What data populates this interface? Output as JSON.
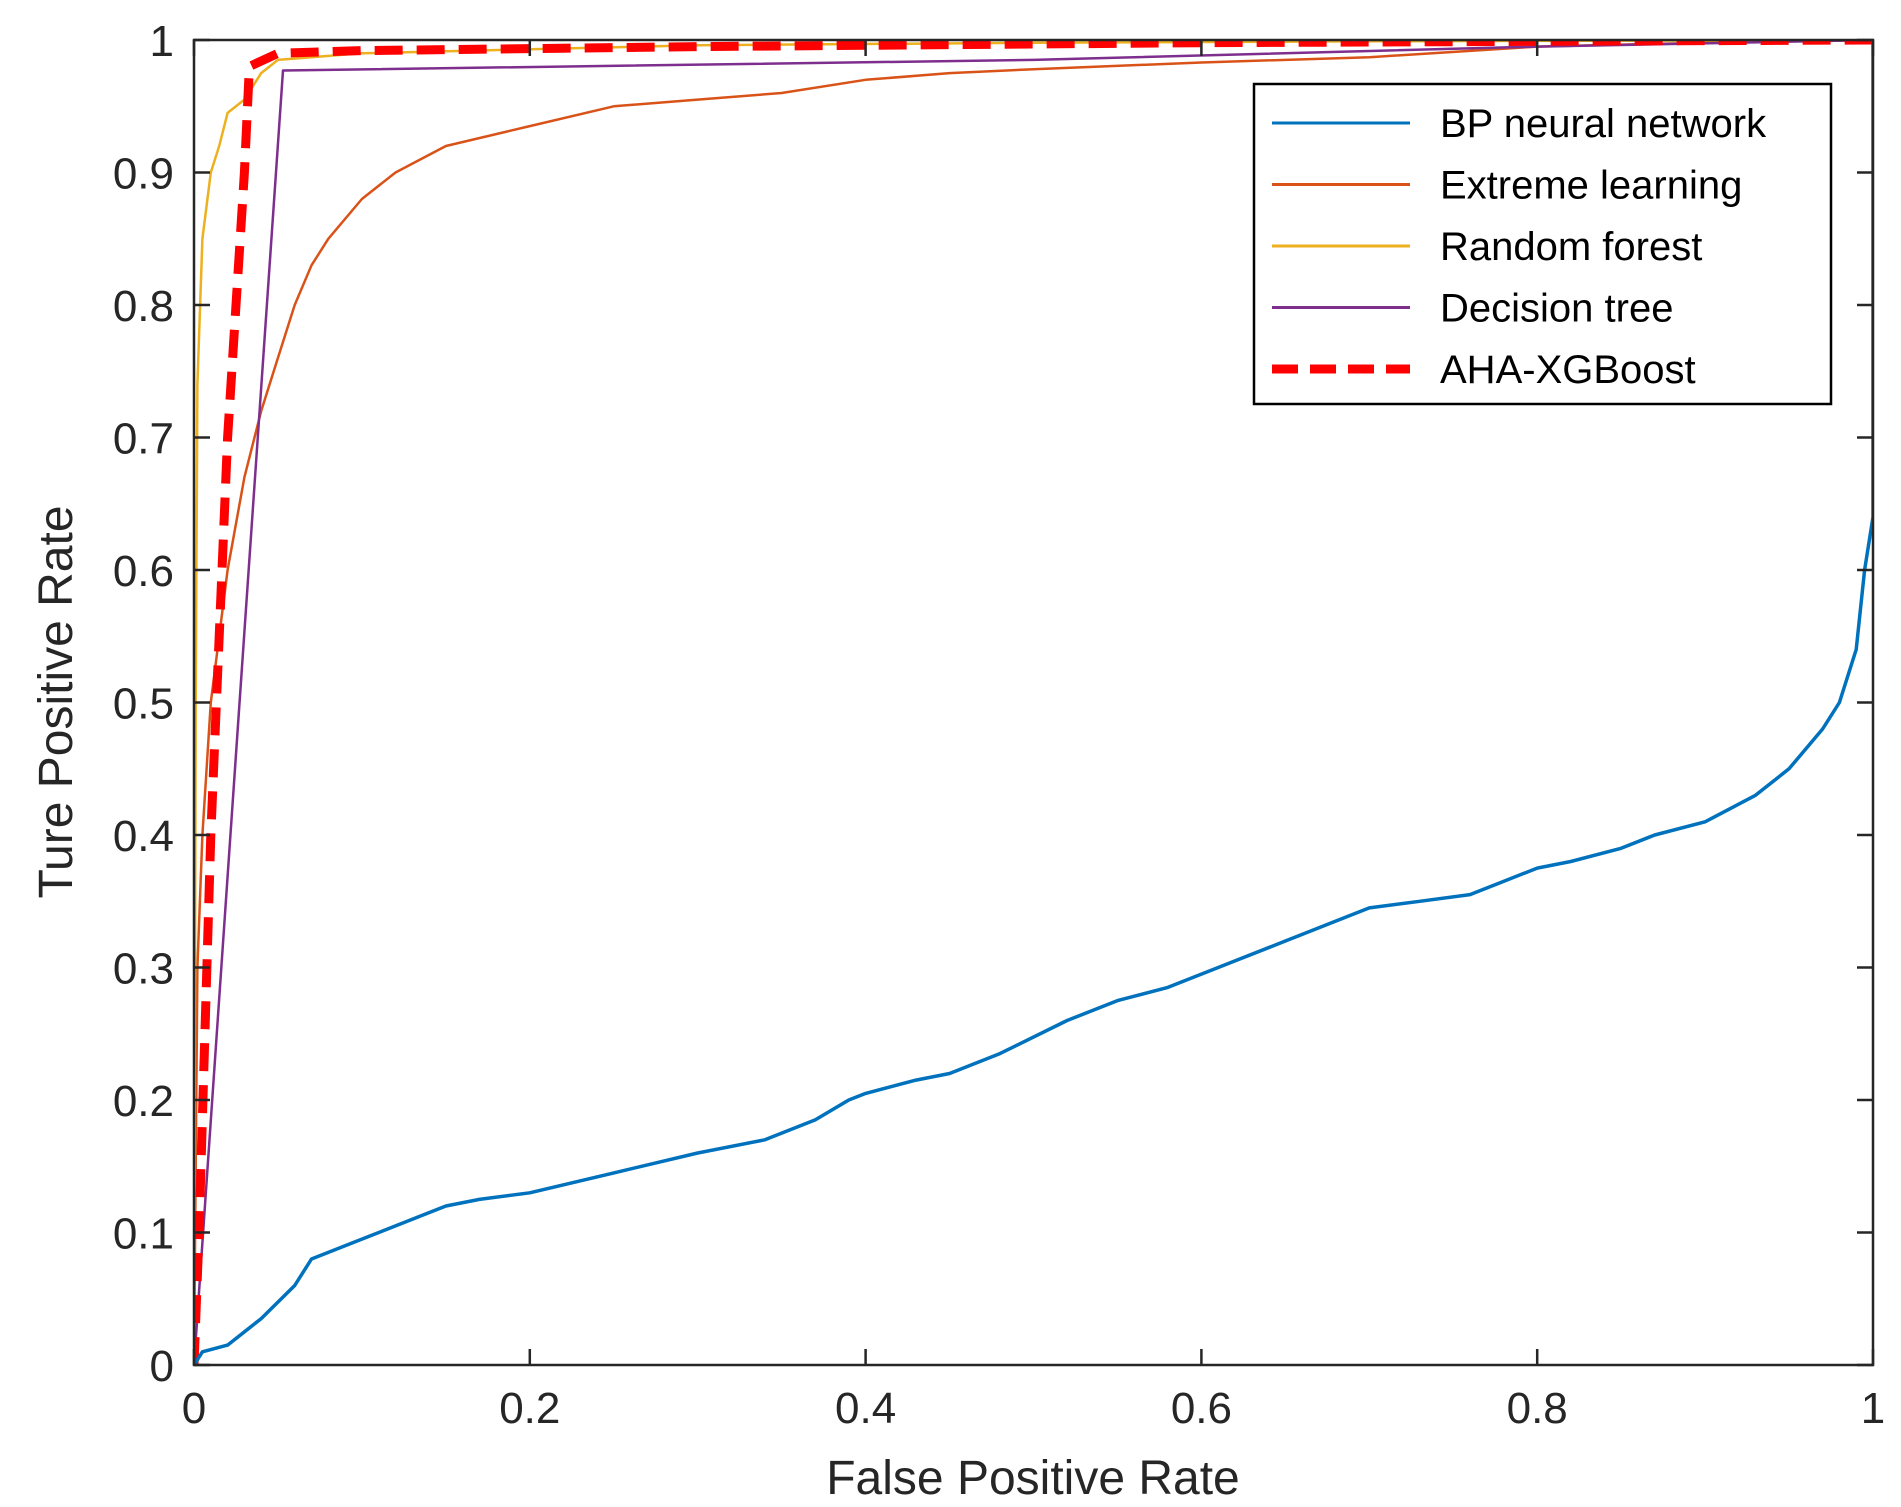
{
  "chart_data": {
    "type": "line",
    "title": "",
    "xlabel": "False Positive Rate",
    "ylabel": "Ture Positive Rate",
    "xlim": [
      0,
      1
    ],
    "ylim": [
      0,
      1
    ],
    "xticks": [
      0,
      0.2,
      0.4,
      0.6,
      0.8,
      1
    ],
    "yticks": [
      0,
      0.1,
      0.2,
      0.3,
      0.4,
      0.5,
      0.6,
      0.7,
      0.8,
      0.9,
      1
    ],
    "xtick_labels": [
      "0",
      "0.2",
      "0.4",
      "0.6",
      "0.8",
      "1"
    ],
    "ytick_labels": [
      "0",
      "0.1",
      "0.2",
      "0.3",
      "0.4",
      "0.5",
      "0.6",
      "0.7",
      "0.8",
      "0.9",
      "1"
    ],
    "grid": false,
    "legend_position": "top-right",
    "series": [
      {
        "name": "BP neural network",
        "color": "#0072BD",
        "dash": "solid",
        "x": [
          0,
          0.005,
          0.02,
          0.04,
          0.06,
          0.07,
          0.08,
          0.1,
          0.13,
          0.15,
          0.17,
          0.2,
          0.25,
          0.3,
          0.34,
          0.37,
          0.39,
          0.4,
          0.43,
          0.45,
          0.48,
          0.52,
          0.55,
          0.58,
          0.6,
          0.62,
          0.65,
          0.68,
          0.7,
          0.73,
          0.76,
          0.78,
          0.8,
          0.82,
          0.85,
          0.87,
          0.9,
          0.93,
          0.95,
          0.97,
          0.98,
          0.99,
          0.995,
          1,
          1
        ],
        "y": [
          0,
          0.01,
          0.015,
          0.035,
          0.06,
          0.08,
          0.085,
          0.095,
          0.11,
          0.12,
          0.125,
          0.13,
          0.145,
          0.16,
          0.17,
          0.185,
          0.2,
          0.205,
          0.215,
          0.22,
          0.235,
          0.26,
          0.275,
          0.285,
          0.295,
          0.305,
          0.32,
          0.335,
          0.345,
          0.35,
          0.355,
          0.365,
          0.375,
          0.38,
          0.39,
          0.4,
          0.41,
          0.43,
          0.45,
          0.48,
          0.5,
          0.54,
          0.6,
          0.64,
          1
        ]
      },
      {
        "name": "Extreme learning",
        "color": "#D95319",
        "dash": "solid",
        "x": [
          0,
          0.002,
          0.005,
          0.01,
          0.015,
          0.02,
          0.03,
          0.04,
          0.05,
          0.06,
          0.07,
          0.08,
          0.1,
          0.12,
          0.15,
          0.2,
          0.25,
          0.3,
          0.35,
          0.4,
          0.45,
          0.5,
          0.6,
          0.7,
          0.8,
          0.9,
          1
        ],
        "y": [
          0,
          0.3,
          0.4,
          0.5,
          0.55,
          0.6,
          0.67,
          0.72,
          0.76,
          0.8,
          0.83,
          0.85,
          0.88,
          0.9,
          0.92,
          0.935,
          0.95,
          0.955,
          0.96,
          0.97,
          0.975,
          0.978,
          0.983,
          0.987,
          0.995,
          0.998,
          1
        ]
      },
      {
        "name": "Random forest",
        "color": "#EDB120",
        "dash": "solid",
        "x": [
          0,
          0.001,
          0.002,
          0.005,
          0.01,
          0.015,
          0.02,
          0.03,
          0.04,
          0.05,
          0.1,
          0.2,
          0.3,
          0.5,
          0.7,
          1
        ],
        "y": [
          0,
          0.5,
          0.74,
          0.85,
          0.9,
          0.92,
          0.945,
          0.955,
          0.975,
          0.985,
          0.99,
          0.993,
          0.996,
          0.998,
          0.999,
          1
        ]
      },
      {
        "name": "Decision tree",
        "color": "#7E2F8E",
        "dash": "solid",
        "x": [
          0,
          0.053,
          0.5,
          0.8,
          1
        ],
        "y": [
          0,
          0.977,
          0.985,
          0.995,
          1
        ]
      },
      {
        "name": "AHA-XGBoost",
        "color": "#FF0000",
        "dash": "dashed",
        "x": [
          0,
          0.003,
          0.01,
          0.02,
          0.03,
          0.033,
          0.05,
          0.1,
          0.3,
          0.6,
          1
        ],
        "y": [
          0,
          0.1,
          0.4,
          0.7,
          0.9,
          0.98,
          0.99,
          0.992,
          0.995,
          0.998,
          1
        ]
      }
    ]
  }
}
